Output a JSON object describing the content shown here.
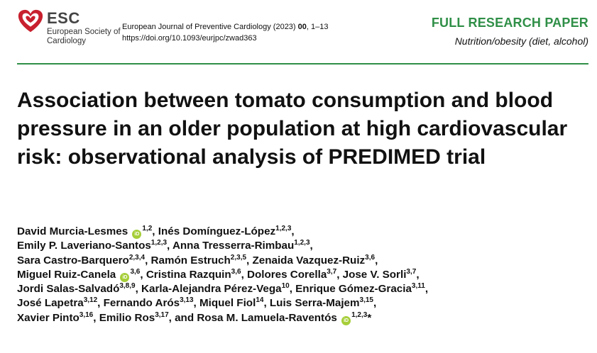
{
  "header": {
    "logo_text": "ESC",
    "logo_subtitle": "European Society of Cardiology",
    "journal_name": "European Journal of Preventive Cardiology (2023)",
    "volume": "00",
    "pages": ", 1–13",
    "doi": "https://doi.org/10.1093/eurjpc/zwad363",
    "paper_type": "FULL RESEARCH PAPER",
    "topic": "Nutrition/obesity (diet, alcohol)",
    "accent_color": "#2f8f47",
    "logo_color": "#c8202e"
  },
  "article": {
    "title": "Association between tomato consumption and blood pressure in an older population at high cardiovascular risk: observational analysis of PREDIMED trial",
    "orcid_icon_text": "iD",
    "authors": [
      {
        "name": "David Murcia-Lesmes",
        "orcid": true,
        "aff": "1,2",
        "sep": ", "
      },
      {
        "name": "Inés Domínguez-López",
        "orcid": false,
        "aff": "1,2,3",
        "sep": ","
      },
      {
        "name": "Emily P. Laveriano-Santos",
        "orcid": false,
        "aff": "1,2,3",
        "sep": ", "
      },
      {
        "name": "Anna Tresserra-Rimbau",
        "orcid": false,
        "aff": "1,2,3",
        "sep": ","
      },
      {
        "name": "Sara Castro-Barquero",
        "orcid": false,
        "aff": "2,3,4",
        "sep": ", "
      },
      {
        "name": "Ramón Estruch",
        "orcid": false,
        "aff": "2,3,5",
        "sep": ", "
      },
      {
        "name": "Zenaida Vazquez-Ruiz",
        "orcid": false,
        "aff": "3,6",
        "sep": ","
      },
      {
        "name": "Miguel Ruiz-Canela",
        "orcid": true,
        "aff": "3,6",
        "sep": ", "
      },
      {
        "name": "Cristina Razquin",
        "orcid": false,
        "aff": "3,6",
        "sep": ", "
      },
      {
        "name": "Dolores Corella",
        "orcid": false,
        "aff": "3,7",
        "sep": ", "
      },
      {
        "name": "Jose V. Sorli",
        "orcid": false,
        "aff": "3,7",
        "sep": ","
      },
      {
        "name": "Jordi Salas-Salvadó",
        "orcid": false,
        "aff": "3,8,9",
        "sep": ", "
      },
      {
        "name": "Karla-Alejandra Pérez-Vega",
        "orcid": false,
        "aff": "10",
        "sep": ", "
      },
      {
        "name": "Enrique Gómez-Gracia",
        "orcid": false,
        "aff": "3,11",
        "sep": ","
      },
      {
        "name": "José Lapetra",
        "orcid": false,
        "aff": "3,12",
        "sep": ", "
      },
      {
        "name": "Fernando Arós",
        "orcid": false,
        "aff": "3,13",
        "sep": ", "
      },
      {
        "name": "Miquel Fiol",
        "orcid": false,
        "aff": "14",
        "sep": ", "
      },
      {
        "name": "Luis Serra-Majem",
        "orcid": false,
        "aff": "3,15",
        "sep": ","
      },
      {
        "name": "Xavier Pinto",
        "orcid": false,
        "aff": "3,16",
        "sep": ", "
      },
      {
        "name": "Emilio Ros",
        "orcid": false,
        "aff": "3,17",
        "sep": ", and "
      },
      {
        "name": "Rosa M. Lamuela-Raventós",
        "orcid": true,
        "aff": "1,2,3",
        "sep": "*"
      }
    ],
    "author_lines": [
      [
        0,
        1
      ],
      [
        2,
        3
      ],
      [
        4,
        5,
        6
      ],
      [
        7,
        8,
        9,
        10
      ],
      [
        11,
        12,
        13
      ],
      [
        14,
        15,
        16,
        17
      ],
      [
        18,
        19,
        20
      ]
    ]
  }
}
